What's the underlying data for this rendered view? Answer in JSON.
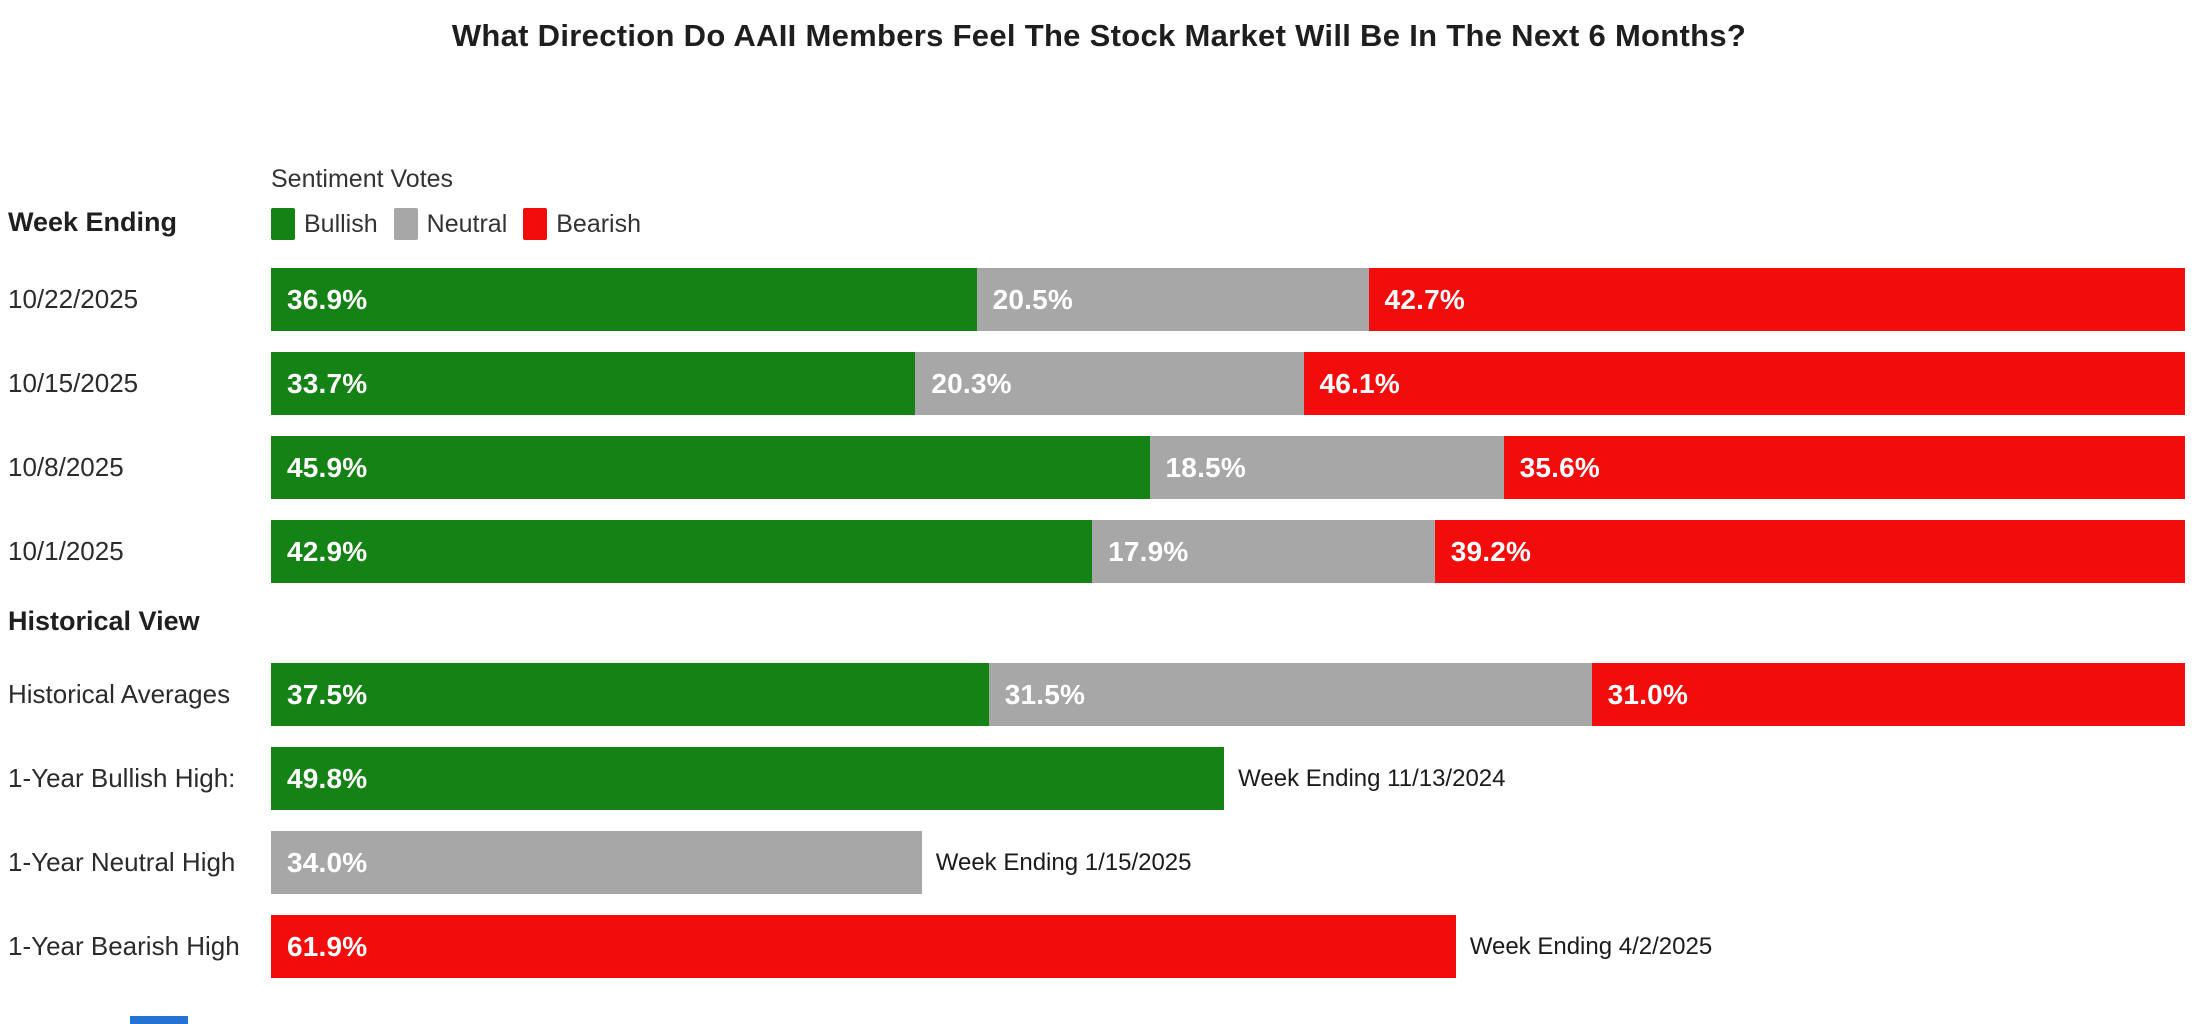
{
  "chart_data": {
    "type": "bar",
    "orientation": "horizontal",
    "stacked": true,
    "title": "What Direction Do AAII Members Feel The Stock Market Will Be In The Next 6 Months?",
    "legend_title": "Sentiment Votes",
    "series_names": [
      "Bullish",
      "Neutral",
      "Bearish"
    ],
    "colors": {
      "bullish": "#148214",
      "neutral": "#a7a7a7",
      "bearish": "#f30c0c"
    },
    "xlim": [
      0,
      100
    ],
    "unit": "%",
    "value_label_format": "one-decimal-percent",
    "weekly": {
      "section_label": "Week Ending",
      "rows": [
        {
          "label": "10/22/2025",
          "values": [
            36.9,
            20.5,
            42.7
          ]
        },
        {
          "label": "10/15/2025",
          "values": [
            33.7,
            20.3,
            46.1
          ]
        },
        {
          "label": "10/8/2025",
          "values": [
            45.9,
            18.5,
            35.6
          ]
        },
        {
          "label": "10/1/2025",
          "values": [
            42.9,
            17.9,
            39.2
          ]
        }
      ]
    },
    "historical": {
      "section_label": "Historical View",
      "average_row": {
        "label": "Historical Averages",
        "values": [
          37.5,
          31.5,
          31.0
        ]
      },
      "extreme_rows": [
        {
          "label": "1-Year Bullish High:",
          "series": "Bullish",
          "value": 49.8,
          "annotation": "Week Ending 11/13/2024"
        },
        {
          "label": "1-Year Neutral High",
          "series": "Neutral",
          "value": 34.0,
          "annotation": "Week Ending 1/15/2025"
        },
        {
          "label": "1-Year Bearish High",
          "series": "Bearish",
          "value": 61.9,
          "annotation": "Week Ending 4/2/2025"
        }
      ]
    },
    "clipped_bottom_bar_color": "#2273d2"
  }
}
